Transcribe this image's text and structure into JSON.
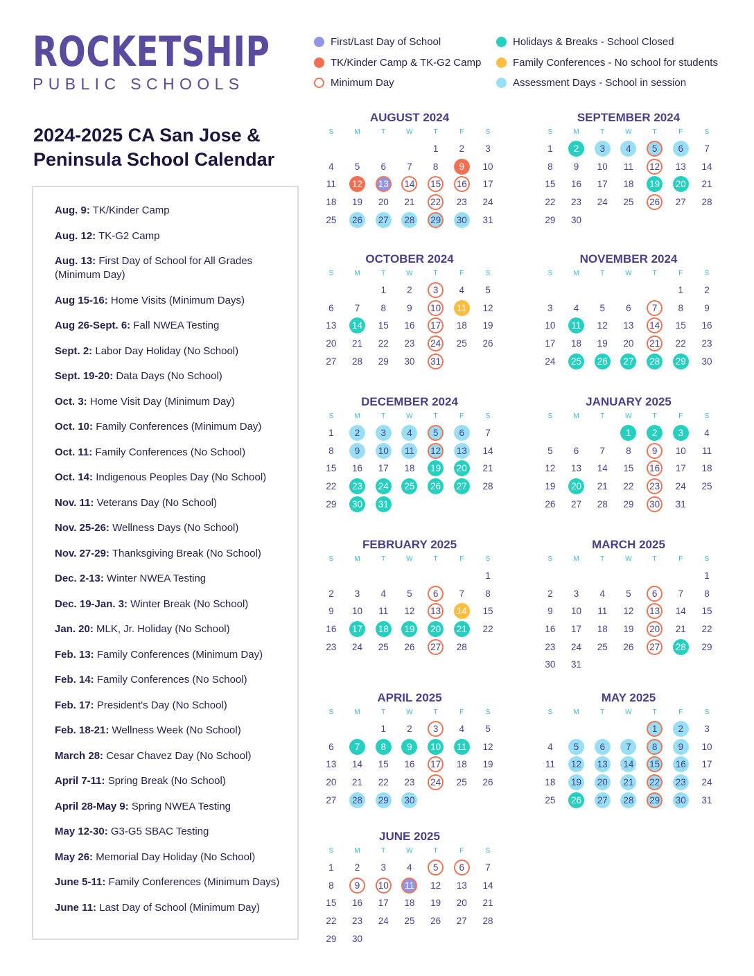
{
  "logo": {
    "main": "ROCKETSHIP",
    "sub": "PUBLIC SCHOOLS"
  },
  "title": "2024-2025 CA San Jose & Peninsula School Calendar",
  "colors": {
    "orange": "#f26f4f",
    "purple": "#8f95e8",
    "teal": "#25d0c0",
    "yellow": "#fbbd3e",
    "blue": "#98dff5",
    "ring": "#f07555"
  },
  "legend": [
    {
      "label": "First/Last Day of School",
      "type": "p"
    },
    {
      "label": "TK/Kinder Camp & TK-G2 Camp",
      "type": "o"
    },
    {
      "label": "Minimum Day",
      "type": "r"
    },
    {
      "label": "Holidays & Breaks - School Closed",
      "type": "t"
    },
    {
      "label": "Family Conferences - No school for students",
      "type": "y"
    },
    {
      "label": "Assessment Days - School in session",
      "type": "b"
    }
  ],
  "events": [
    {
      "date": "Aug. 9:",
      "text": "TK/Kinder Camp"
    },
    {
      "date": "Aug. 12:",
      "text": "TK-G2 Camp"
    },
    {
      "date": "Aug. 13:",
      "text": "First Day of School for All Grades (Minimum Day)"
    },
    {
      "date": "Aug 15-16:",
      "text": "Home Visits (Minimum Days)"
    },
    {
      "date": "Aug 26-Sept. 6:",
      "text": "Fall NWEA Testing"
    },
    {
      "date": "Sept. 2:",
      "text": "Labor Day Holiday (No School)"
    },
    {
      "date": "Sept. 19-20:",
      "text": "Data Days (No School)"
    },
    {
      "date": "Oct. 3:",
      "text": "Home Visit Day (Minimum Day)"
    },
    {
      "date": "Oct. 10:",
      "text": "Family Conferences (Minimum Day)"
    },
    {
      "date": "Oct. 11:",
      "text": "Family Conferences (No School)"
    },
    {
      "date": "Oct. 14:",
      "text": "Indigenous Peoples Day (No School)"
    },
    {
      "date": "Nov. 11:",
      "text": "Veterans Day (No School)"
    },
    {
      "date": "Nov. 25-26:",
      "text": "Wellness Days (No School)"
    },
    {
      "date": "Nov. 27-29:",
      "text": "Thanksgiving Break (No School)"
    },
    {
      "date": "Dec. 2-13:",
      "text": "Winter NWEA Testing"
    },
    {
      "date": "Dec. 19-Jan. 3:",
      "text": "Winter Break (No School)"
    },
    {
      "date": "Jan. 20:",
      "text": "MLK, Jr. Holiday (No School)"
    },
    {
      "date": "Feb. 13:",
      "text": "Family Conferences (Minimum Day)"
    },
    {
      "date": "Feb. 14:",
      "text": "Family Conferences (No School)"
    },
    {
      "date": "Feb. 17:",
      "text": "President's Day (No School)"
    },
    {
      "date": "Feb. 18-21:",
      "text": "Wellness Week (No School)"
    },
    {
      "date": "March 28:",
      "text": "Cesar Chavez Day (No School)"
    },
    {
      "date": "April 7-11:",
      "text": "Spring Break (No School)"
    },
    {
      "date": "April 28-May 9:",
      "text": "Spring NWEA Testing"
    },
    {
      "date": "May 12-30:",
      "text": "G3-G5 SBAC Testing"
    },
    {
      "date": "May 26:",
      "text": "Memorial Day Holiday (No School)"
    },
    {
      "date": "June 5-11:",
      "text": "Family Conferences (Minimum Days)"
    },
    {
      "date": "June 11:",
      "text": "Last Day of School (Minimum Day)"
    }
  ],
  "weekdays": [
    "S",
    "M",
    "T",
    "W",
    "T",
    "F",
    "S"
  ],
  "months": [
    {
      "name": "AUGUST 2024",
      "start": 4,
      "days": 31,
      "marks": {
        "9": "o",
        "12": "o",
        "13": "pr",
        "14": "r",
        "15": "r",
        "16": "r",
        "22": "r",
        "26": "b",
        "27": "b",
        "28": "b",
        "29": "br",
        "30": "b"
      }
    },
    {
      "name": "SEPTEMBER 2024",
      "start": 0,
      "days": 30,
      "marks": {
        "2": "t",
        "3": "b",
        "4": "b",
        "5": "br",
        "6": "b",
        "12": "r",
        "19": "t",
        "20": "t",
        "26": "r"
      }
    },
    {
      "name": "OCTOBER 2024",
      "start": 2,
      "days": 31,
      "marks": {
        "3": "r",
        "10": "r",
        "11": "y",
        "14": "t",
        "17": "r",
        "24": "r",
        "31": "r"
      }
    },
    {
      "name": "NOVEMBER 2024",
      "start": 5,
      "days": 30,
      "marks": {
        "7": "r",
        "11": "t",
        "14": "r",
        "21": "r",
        "25": "t",
        "26": "t",
        "27": "t",
        "28": "t",
        "29": "t"
      }
    },
    {
      "name": "DECEMBER 2024",
      "start": 0,
      "days": 31,
      "marks": {
        "2": "b",
        "3": "b",
        "4": "b",
        "5": "br",
        "6": "b",
        "9": "b",
        "10": "b",
        "11": "b",
        "12": "br",
        "13": "b",
        "19": "t",
        "20": "t",
        "23": "t",
        "24": "t",
        "25": "t",
        "26": "t",
        "27": "t",
        "30": "t",
        "31": "t"
      }
    },
    {
      "name": "JANUARY 2025",
      "start": 3,
      "days": 31,
      "marks": {
        "1": "t",
        "2": "t",
        "3": "t",
        "9": "r",
        "16": "r",
        "20": "t",
        "23": "r",
        "30": "r"
      }
    },
    {
      "name": "FEBRUARY 2025",
      "start": 6,
      "days": 28,
      "marks": {
        "6": "r",
        "13": "r",
        "14": "y",
        "17": "t",
        "18": "t",
        "19": "t",
        "20": "t",
        "21": "t",
        "27": "r"
      }
    },
    {
      "name": "MARCH 2025",
      "start": 6,
      "days": 31,
      "marks": {
        "6": "r",
        "13": "r",
        "20": "r",
        "27": "r",
        "28": "t"
      }
    },
    {
      "name": "APRIL 2025",
      "start": 2,
      "days": 30,
      "marks": {
        "3": "r",
        "7": "t",
        "8": "t",
        "9": "t",
        "10": "t",
        "11": "t",
        "17": "r",
        "24": "r",
        "28": "b",
        "29": "b",
        "30": "b"
      }
    },
    {
      "name": "MAY 2025",
      "start": 4,
      "days": 31,
      "marks": {
        "1": "br",
        "2": "b",
        "5": "b",
        "6": "b",
        "7": "b",
        "8": "br",
        "9": "b",
        "12": "b",
        "13": "b",
        "14": "b",
        "15": "br",
        "16": "b",
        "19": "b",
        "20": "b",
        "21": "b",
        "22": "br",
        "23": "b",
        "26": "t",
        "27": "b",
        "28": "b",
        "29": "br",
        "30": "b"
      }
    },
    {
      "name": "JUNE 2025",
      "start": 0,
      "days": 30,
      "marks": {
        "5": "r",
        "6": "r",
        "9": "r",
        "10": "r",
        "11": "pr"
      }
    }
  ]
}
